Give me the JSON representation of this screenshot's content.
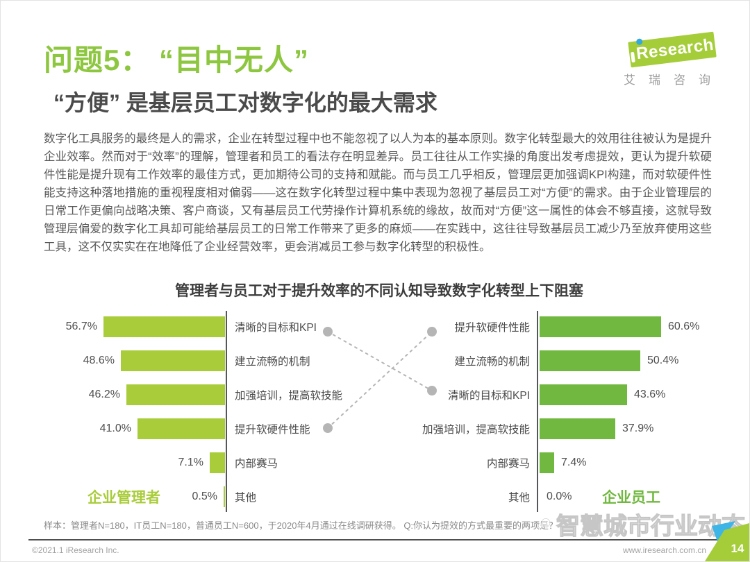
{
  "colors": {
    "accent_green": "#8dc63f",
    "bar_left": "#a9cc3b",
    "bar_right": "#70b83f",
    "logo_green": "#a5cd39",
    "logo_blue": "#35a8dc",
    "corner_blue": "#3db5e6"
  },
  "header": {
    "title": "问题5： “目中无人”",
    "subtitle": "“方便” 是基层员工对数字化的最大需求",
    "logo": {
      "brand": "Research",
      "cn": "艾瑞咨询"
    }
  },
  "body_text": "数字化工具服务的最终是人的需求，企业在转型过程中也不能忽视了以人为本的基本原则。数字化转型最大的效用往往被认为是提升企业效率。然而对于“效率”的理解，管理者和员工的看法存在明显差异。员工往往从工作实操的角度出发考虑提效，更认为提升软硬件性能是提升现有工作效率的最佳方式，更加期待公司的支持和赋能。而与员工几乎相反，管理层更加强调KPI构建，而对软硬件性能支持这种落地措施的重视程度相对偏弱——这在数字化转型过程中集中表现为忽视了基层员工对“方便”的需求。由于企业管理层的日常工作更偏向战略决策、客户商谈，又有基层员工代劳操作计算机系统的缘故，故而对“方便”这一属性的体会不够直接，这就导致管理层偏爱的数字化工具却可能给基层员工的日常工作带来了更多的麻烦——在实践中，这往往导致基层员工减少乃至放弃使用这些工具，这不仅实实在在地降低了企业经营效率，更会消减员工参与数字化转型的积极性。",
  "chart_data": {
    "type": "bar",
    "orientation": "horizontal",
    "title": "管理者与员工对于提升效率的不同认知导致数字化转型上下阻塞",
    "value_suffix": "%",
    "xlim": [
      0,
      65
    ],
    "series": [
      {
        "name": "企业管理者",
        "side": "left",
        "color": "#a9cc3b",
        "categories": [
          "清晰的目标和KPI",
          "建立流畅的机制",
          "加强培训，提高软技能",
          "提升软硬件性能",
          "内部赛马",
          "其他"
        ],
        "values": [
          56.7,
          48.6,
          46.2,
          41.0,
          7.1,
          0.5
        ]
      },
      {
        "name": "企业员工",
        "side": "right",
        "color": "#70b83f",
        "categories": [
          "提升软硬件性能",
          "建立流畅的机制",
          "清晰的目标和KPI",
          "加强培训，提高软技能",
          "内部赛马",
          "其他"
        ],
        "values": [
          60.6,
          50.4,
          43.6,
          37.9,
          7.4,
          0.0
        ]
      }
    ],
    "connections": [
      {
        "label": "清晰的目标和KPI",
        "left_row": 0,
        "right_row": 2
      },
      {
        "label": "提升软硬件性能",
        "left_row": 3,
        "right_row": 0
      }
    ]
  },
  "footnote": "样本：管理者N=180，IT员工N=180，普通员工N=600，于2020年4月通过在线调研获得。 Q:你认为提效的方式最重要的两项是？",
  "watermark": "智慧城市行业动态",
  "footer": {
    "copyright": "©2021.1 iResearch Inc.",
    "website": "www.iresearch.com.cn",
    "page_number": "14"
  }
}
